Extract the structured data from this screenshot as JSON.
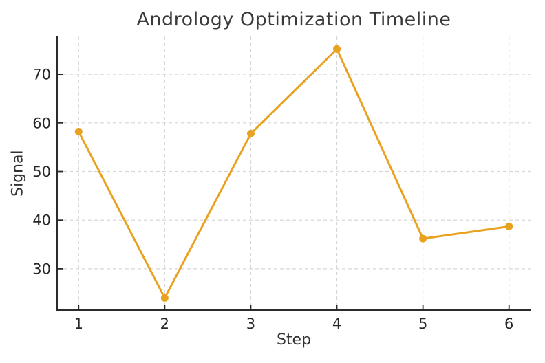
{
  "chart_data": {
    "type": "line",
    "title": "Andrology Optimization Timeline",
    "xlabel": "Step",
    "ylabel": "Signal",
    "x": [
      1,
      2,
      3,
      4,
      5,
      6
    ],
    "series": [
      {
        "name": "Signal",
        "values": [
          58.2,
          24.0,
          57.8,
          75.2,
          36.2,
          38.7
        ]
      }
    ],
    "xticks": [
      1,
      2,
      3,
      4,
      5,
      6
    ],
    "yticks": [
      30,
      40,
      50,
      60,
      70
    ],
    "xlim": [
      0.75,
      6.25
    ],
    "ylim": [
      21.5,
      77.8
    ],
    "grid": true,
    "grid_style": "dashed",
    "legend": "none",
    "marker": "circle",
    "colors": {
      "line": "#E8A220",
      "marker": "#E8A220",
      "grid": "#d7d7d7",
      "spine": "#2b2b2b",
      "tick_text": "#262626",
      "title_text": "#3a3a3a",
      "background": "#ffffff"
    }
  }
}
